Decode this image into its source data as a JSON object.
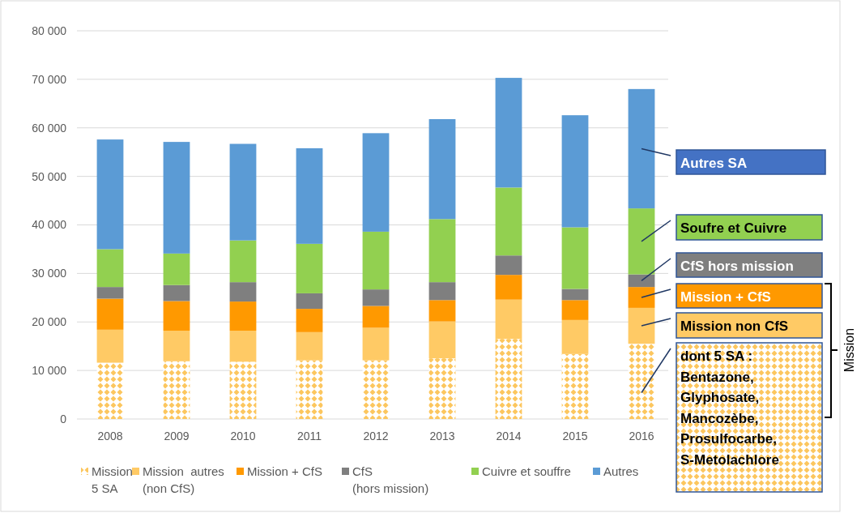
{
  "chart_data": {
    "type": "bar",
    "stacked": true,
    "categories": [
      "2008",
      "2009",
      "2010",
      "2011",
      "2012",
      "2013",
      "2014",
      "2015",
      "2016"
    ],
    "series": [
      {
        "name": "Mission\n5 SA",
        "color": "#fcc65e",
        "values": [
          11600,
          11900,
          11800,
          12100,
          12100,
          12500,
          16500,
          13400,
          15500
        ]
      },
      {
        "name": "Mission  autres\n(non CfS)",
        "color": "#ffca65",
        "values": [
          6800,
          6300,
          6400,
          5800,
          6700,
          7600,
          8100,
          7000,
          7400
        ]
      },
      {
        "name": "Mission + CfS",
        "color": "#ff9900",
        "values": [
          6400,
          6100,
          6000,
          4800,
          4500,
          4400,
          5100,
          4100,
          4300
        ]
      },
      {
        "name": "CfS\n(hors mission)",
        "color": "#7f7f7f",
        "values": [
          2400,
          3300,
          4000,
          3200,
          3400,
          3700,
          4000,
          2300,
          2600
        ]
      },
      {
        "name": "Cuivre et souffre",
        "color": "#92d050",
        "values": [
          7800,
          6500,
          8600,
          10200,
          11900,
          13000,
          14000,
          12700,
          13600
        ]
      },
      {
        "name": "Autres",
        "color": "#5b9bd5",
        "values": [
          22600,
          23000,
          19900,
          19700,
          20300,
          20600,
          22600,
          23100,
          24600
        ]
      }
    ],
    "ylim": [
      0,
      80000
    ],
    "yticks": [
      0,
      {
        "value": 10000,
        "label": "10 000"
      },
      {
        "value": 20000,
        "label": "20 000"
      },
      {
        "value": 30000,
        "label": "30 000"
      },
      {
        "value": 40000,
        "label": "40 000"
      },
      {
        "value": 50000,
        "label": "50 000"
      },
      {
        "value": 60000,
        "label": "60 000"
      },
      {
        "value": 70000,
        "label": "70 000"
      },
      {
        "value": 80000,
        "label": "80 000"
      }
    ],
    "grid": "y",
    "legend": "bottom",
    "annotations": [
      "Autres SA",
      "Soufre et Cuivre",
      "CfS hors mission",
      "Mission + CfS",
      "Mission non CfS",
      "dont 5 SA :\nBentazone,\nGlyphosate,\nMancozèbe,\nProsulfocarbe,\nS-Metolachlore",
      "Mission"
    ]
  }
}
